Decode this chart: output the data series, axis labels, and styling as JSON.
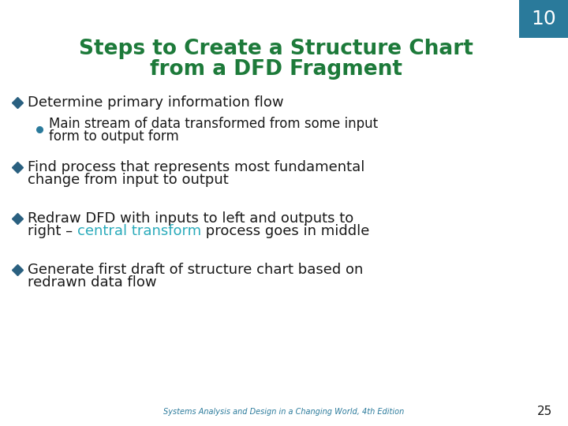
{
  "title_line1": "Steps to Create a Structure Chart",
  "title_line2": "from a DFD Fragment",
  "title_color": "#1D7A3A",
  "background_color": "#FFFFFF",
  "slide_number": "10",
  "slide_number_bg": "#2A7A9B",
  "slide_number_color": "#FFFFFF",
  "page_number": "25",
  "footer_text": "Systems Analysis and Design in a Changing World, 4th Edition",
  "footer_color": "#2A7A9B",
  "bullet_color": "#1A1A1A",
  "diamond_color": "#2A6080",
  "circle_color": "#2A7A9B",
  "highlight_color": "#2AABBB",
  "title_fontsize": 19,
  "body_fontsize": 13,
  "sub_fontsize": 12
}
